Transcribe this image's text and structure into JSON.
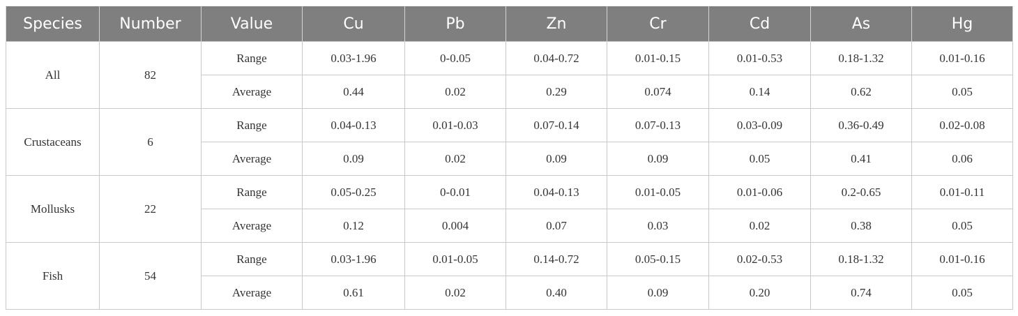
{
  "table": {
    "header": [
      "Species",
      "Number",
      "Value",
      "Cu",
      "Pb",
      "Zn",
      "Cr",
      "Cd",
      "As",
      "Hg"
    ],
    "groups": [
      {
        "species": "All",
        "number": "82",
        "rows": [
          {
            "value": "Range",
            "cells": [
              "0.03-1.96",
              "0-0.05",
              "0.04-0.72",
              "0.01-0.15",
              "0.01-0.53",
              "0.18-1.32",
              "0.01-0.16"
            ]
          },
          {
            "value": "Average",
            "cells": [
              "0.44",
              "0.02",
              "0.29",
              "0.074",
              "0.14",
              "0.62",
              "0.05"
            ]
          }
        ]
      },
      {
        "species": "Crustaceans",
        "number": "6",
        "rows": [
          {
            "value": "Range",
            "cells": [
              "0.04-0.13",
              "0.01-0.03",
              "0.07-0.14",
              "0.07-0.13",
              "0.03-0.09",
              "0.36-0.49",
              "0.02-0.08"
            ]
          },
          {
            "value": "Average",
            "cells": [
              "0.09",
              "0.02",
              "0.09",
              "0.09",
              "0.05",
              "0.41",
              "0.06"
            ]
          }
        ]
      },
      {
        "species": "Mollusks",
        "number": "22",
        "rows": [
          {
            "value": "Range",
            "cells": [
              "0.05-0.25",
              "0-0.01",
              "0.04-0.13",
              "0.01-0.05",
              "0.01-0.06",
              "0.2-0.65",
              "0.01-0.11"
            ]
          },
          {
            "value": "Average",
            "cells": [
              "0.12",
              "0.004",
              "0.07",
              "0.03",
              "0.02",
              "0.38",
              "0.05"
            ]
          }
        ]
      },
      {
        "species": "Fish",
        "number": "54",
        "rows": [
          {
            "value": "Range",
            "cells": [
              "0.03-1.96",
              "0.01-0.05",
              "0.14-0.72",
              "0.05-0.15",
              "0.02-0.53",
              "0.18-1.32",
              "0.01-0.16"
            ]
          },
          {
            "value": "Average",
            "cells": [
              "0.61",
              "0.02",
              "0.40",
              "0.09",
              "0.20",
              "0.74",
              "0.05"
            ]
          }
        ]
      }
    ]
  }
}
